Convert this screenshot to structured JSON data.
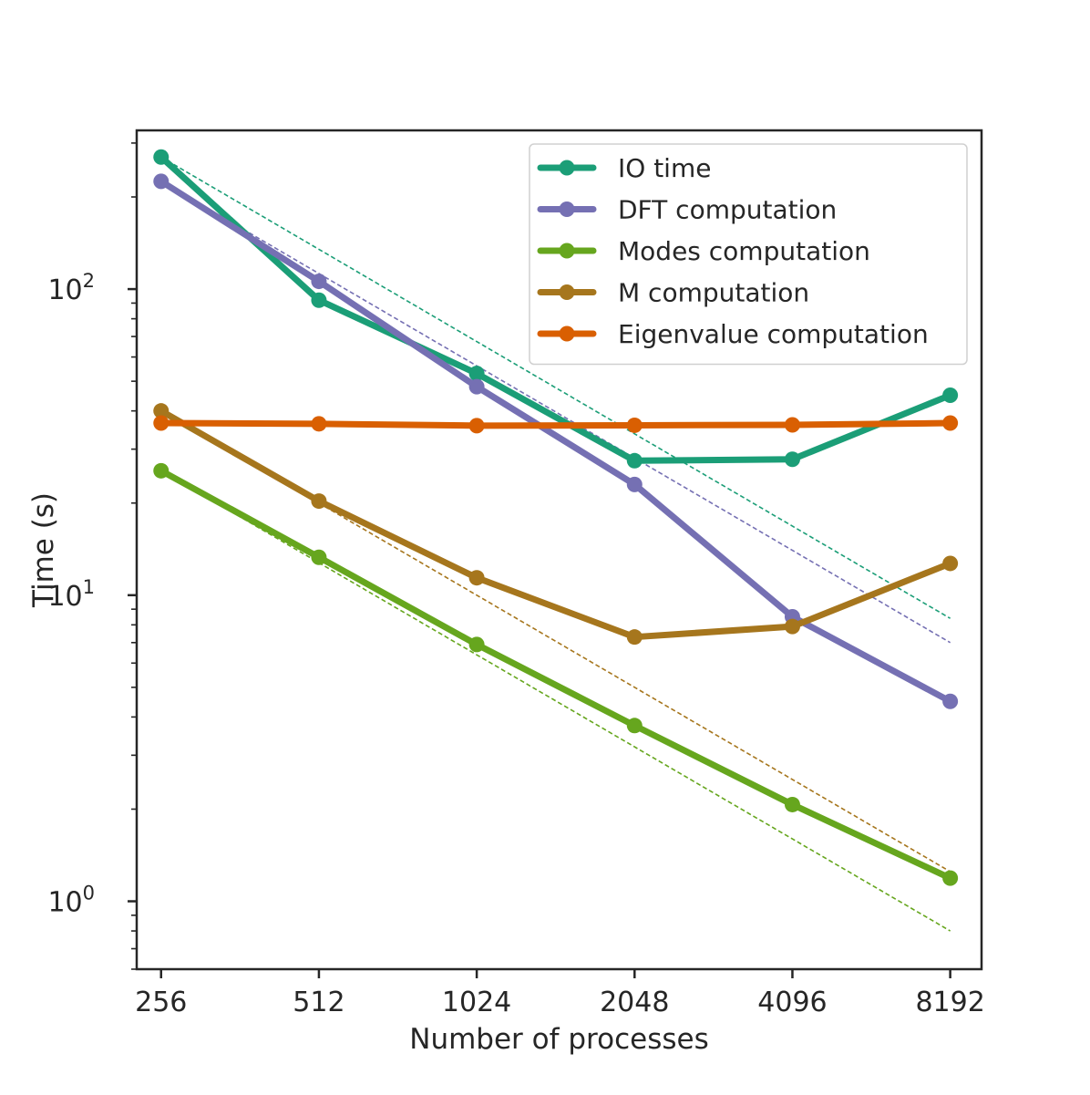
{
  "chart_data": {
    "type": "line",
    "title": "",
    "xlabel": "Number of processes",
    "ylabel": "Time (s)",
    "xscale": "log2",
    "yscale": "log10",
    "x": [
      256,
      512,
      1024,
      2048,
      4096,
      8192
    ],
    "x_tick_labels": [
      "256",
      "512",
      "1024",
      "2048",
      "4096",
      "8192"
    ],
    "xlim": [
      230,
      9400
    ],
    "ylim": [
      0.6,
      330
    ],
    "y_ticks": [
      {
        "value": 1,
        "base": "10",
        "exp": "0"
      },
      {
        "value": 10,
        "base": "10",
        "exp": "1"
      },
      {
        "value": 100,
        "base": "10",
        "exp": "2"
      }
    ],
    "legend_position": "top-right",
    "series": [
      {
        "name": "IO time",
        "color": "#1b9e77",
        "values": [
          270,
          92,
          53,
          27.5,
          27.8,
          45
        ],
        "ideal": [
          270,
          8.4
        ]
      },
      {
        "name": "DFT computation",
        "color": "#7570b3",
        "values": [
          225,
          106,
          48,
          23,
          8.5,
          4.5
        ],
        "ideal": [
          225,
          7.0
        ]
      },
      {
        "name": "Modes computation",
        "color": "#66a61e",
        "values": [
          25.5,
          13.3,
          6.9,
          3.75,
          2.07,
          1.19
        ],
        "ideal": [
          25.5,
          0.8
        ]
      },
      {
        "name": "M computation",
        "color": "#a6761d",
        "values": [
          40,
          20.3,
          11.4,
          7.3,
          7.9,
          12.7
        ],
        "ideal": [
          40,
          1.25
        ]
      },
      {
        "name": "Eigenvalue computation",
        "color": "#d95f02",
        "values": [
          36.5,
          36.3,
          35.8,
          35.9,
          36.0,
          36.5
        ],
        "ideal": null
      }
    ]
  }
}
